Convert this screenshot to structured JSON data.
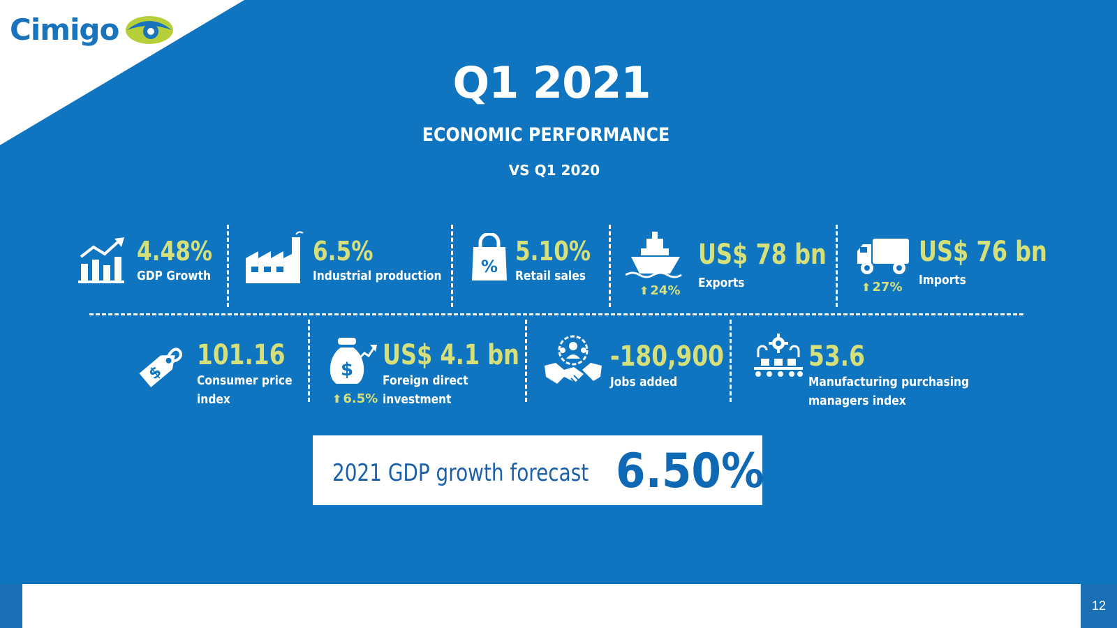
{
  "brand": {
    "name": "Cimigo"
  },
  "header": {
    "title": "Q1 2021",
    "subtitle": "ECONOMIC PERFORMANCE",
    "comparison": "VS Q1 2020"
  },
  "metrics_row1": [
    {
      "value": "4.48%",
      "label": "GDP Growth",
      "icon": "bar-chart-up-icon"
    },
    {
      "value": "6.5%",
      "label": "Industrial production",
      "icon": "factory-icon"
    },
    {
      "value": "5.10%",
      "label": "Retail sales",
      "icon": "shopping-bag-percent-icon"
    },
    {
      "value": "US$ 78 bn",
      "label": "Exports",
      "delta": "24%",
      "icon": "ship-icon"
    },
    {
      "value": "US$ 76 bn",
      "label": "Imports",
      "delta": "27%",
      "icon": "truck-icon"
    }
  ],
  "metrics_row2": [
    {
      "value": "101.16",
      "label_line1": "Consumer price",
      "label_line2": "index",
      "icon": "price-tag-dollar-icon"
    },
    {
      "value": "US$ 4.1 bn",
      "label_line1": "Foreign direct",
      "label_line2": "investment",
      "delta": "6.5%",
      "icon": "money-bag-icon"
    },
    {
      "value": "-180,900",
      "label_line1": "Jobs added",
      "icon": "handshake-people-icon"
    },
    {
      "value": "53.6",
      "label_line1": "Manufacturing purchasing",
      "label_line2": "managers index",
      "icon": "conveyor-gear-icon"
    }
  ],
  "forecast": {
    "label": "2021 GDP growth forecast",
    "value": "6.50%"
  },
  "footer": {
    "page_number": "12"
  },
  "colors": {
    "background": "#0f75c0",
    "accent": "#d6e07a",
    "text": "#ffffff",
    "logo_green": "#b7d03a"
  }
}
